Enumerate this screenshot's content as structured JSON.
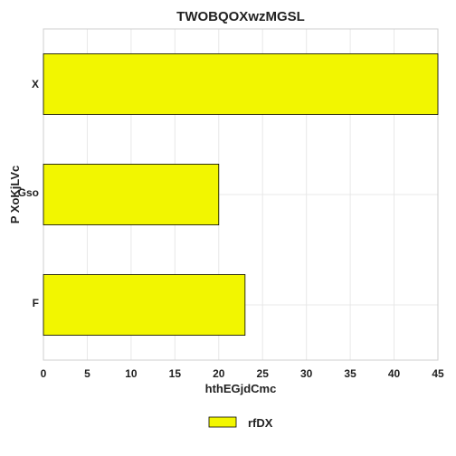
{
  "chart_data": {
    "type": "bar",
    "orientation": "horizontal",
    "title": "TWOBQOXwzMGSL",
    "xlabel": "hthEGjdCmc",
    "ylabel": "P XoKjLVc",
    "categories": [
      "X",
      "Gso",
      "F"
    ],
    "category_label_styles": [
      "large",
      "tiny",
      "tiny"
    ],
    "series": [
      {
        "name": "rfDX",
        "values": [
          45,
          20,
          23
        ],
        "color": "#f2f600"
      }
    ],
    "xlim": [
      0,
      45
    ],
    "xticks": [
      0,
      5,
      10,
      15,
      20,
      25,
      30,
      35,
      40,
      45
    ],
    "grid": true,
    "legend_position": "bottom-center"
  }
}
